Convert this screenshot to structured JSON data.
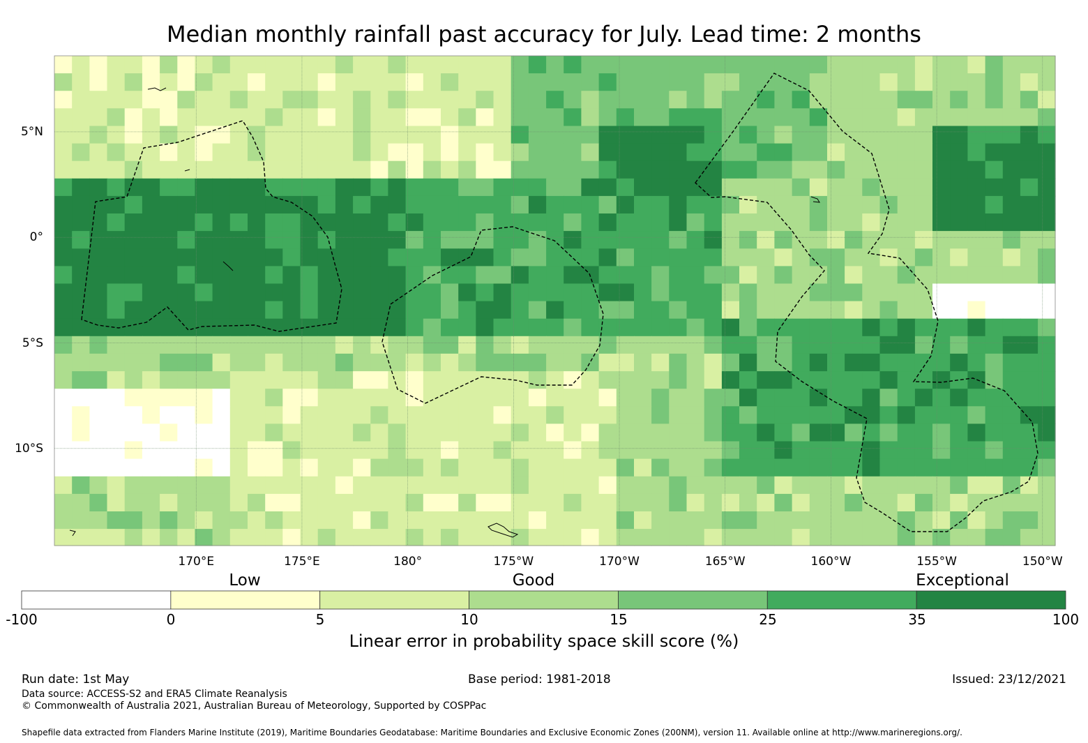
{
  "title": "Median monthly rainfall past accuracy for July. Lead time: 2 months",
  "map": {
    "x_axis": {
      "min_lon": 163.3,
      "max_lon": 210.6,
      "ticks": [
        {
          "lon": 170,
          "label": "170°E"
        },
        {
          "lon": 175,
          "label": "175°E"
        },
        {
          "lon": 180,
          "label": "180°"
        },
        {
          "lon": 185,
          "label": "175°W"
        },
        {
          "lon": 190,
          "label": "170°W"
        },
        {
          "lon": 195,
          "label": "165°W"
        },
        {
          "lon": 200,
          "label": "160°W"
        },
        {
          "lon": 205,
          "label": "155°W"
        },
        {
          "lon": 210,
          "label": "150°W"
        }
      ]
    },
    "y_axis": {
      "min_lat": -14.6,
      "max_lat": 8.6,
      "ticks": [
        {
          "lat": 5,
          "label": "5°N"
        },
        {
          "lat": 0,
          "label": "0°"
        },
        {
          "lat": -5,
          "label": "5°S"
        },
        {
          "lat": -10,
          "label": "10°S"
        }
      ]
    },
    "grid": true,
    "eez_boundary_style": "dashed black",
    "colors": {
      "grid": "#6b8a6b",
      "boundary": "#000000",
      "land": "#000000"
    }
  },
  "chart_data": {
    "type": "heatmap",
    "title": "Median monthly rainfall past accuracy for July. Lead time: 2 months",
    "value_label": "Linear error in probability space skill score (%)",
    "bins": [
      -100,
      0,
      5,
      10,
      15,
      25,
      35,
      100
    ],
    "bin_colors": [
      "#ffffff",
      "#ffffcc",
      "#d9f0a3",
      "#addd8e",
      "#78c679",
      "#41ab5d",
      "#238443"
    ],
    "category_labels": [
      "Low",
      "Good",
      "Exceptional"
    ],
    "regions": [
      {
        "name": "",
        "lat_range": [
          3,
          8.6
        ],
        "lon_range": [
          163.3,
          185
        ],
        "dominant_class": 2
      },
      {
        "name": "",
        "lat_range": [
          -5,
          3
        ],
        "lon_range": [
          163.3,
          180
        ],
        "dominant_class": 6
      },
      {
        "name": "",
        "lat_range": [
          -5,
          3
        ],
        "lon_range": [
          180,
          195
        ],
        "dominant_class": 5
      },
      {
        "name": "",
        "lat_range": [
          3,
          8.6
        ],
        "lon_range": [
          185,
          200
        ],
        "dominant_class": 4
      },
      {
        "name": "",
        "lat_range": [
          2,
          5
        ],
        "lon_range": [
          189,
          195
        ],
        "dominant_class": 6
      },
      {
        "name": "",
        "lat_range": [
          0,
          5
        ],
        "lon_range": [
          205,
          210.6
        ],
        "dominant_class": 6
      },
      {
        "name": "",
        "lat_range": [
          -3.5,
          -2.2
        ],
        "lon_range": [
          205,
          210.6
        ],
        "dominant_class": 0
      },
      {
        "name": "",
        "lat_range": [
          -11,
          -7
        ],
        "lon_range": [
          163.3,
          172
        ],
        "dominant_class": 0
      },
      {
        "name": "",
        "lat_range": [
          -14.6,
          -6
        ],
        "lon_range": [
          172,
          190
        ],
        "dominant_class": 2
      },
      {
        "name": "",
        "lat_range": [
          -11,
          -4
        ],
        "lon_range": [
          195,
          210.6
        ],
        "dominant_class": 5
      },
      {
        "name": "",
        "lat_range": [
          -14.6,
          -11
        ],
        "lon_range": [
          190,
          210.6
        ],
        "dominant_class": 3
      }
    ]
  },
  "colorbar": {
    "tick_labels": [
      "-100",
      "0",
      "5",
      "10",
      "15",
      "25",
      "35",
      "100"
    ],
    "categories": [
      {
        "label": "Low",
        "position": 0.2
      },
      {
        "label": "Good",
        "position": 0.49
      },
      {
        "label": "Exceptional",
        "position": 0.9
      }
    ],
    "title": "Linear error in probability space skill score (%)"
  },
  "footer": {
    "run_date": "Run date: 1st May",
    "base_period": "Base period: 1981-2018",
    "issued": "Issued: 23/12/2021",
    "data_source": "Data source: ACCESS-S2 and ERA5 Climate Reanalysis",
    "copyright": "© Commonwealth of Australia 2021, Australian Bureau of Meteorology, Supported by COSPPac",
    "shapefile_note": "Shapefile data extracted from Flanders Marine Institute (2019), Maritime Boundaries Geodatabase: Maritime Boundaries and Exclusive Economic Zones (200NM), version 11. Available online at http://www.marineregions.org/."
  }
}
